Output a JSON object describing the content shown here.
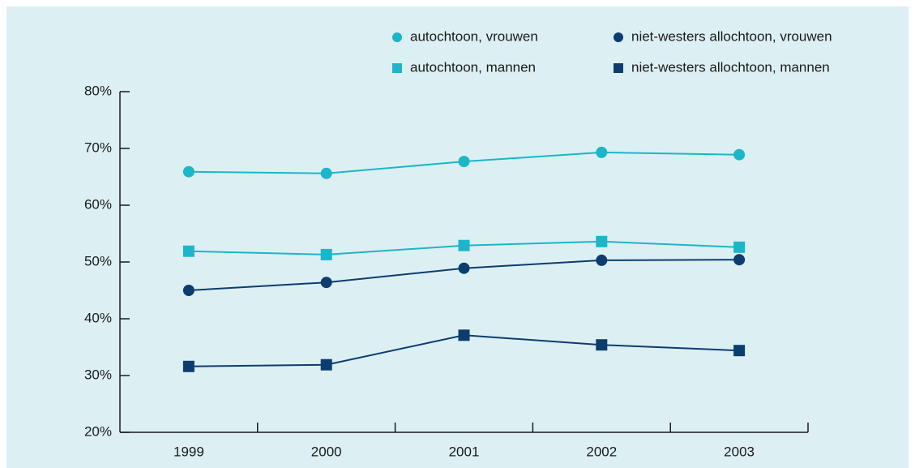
{
  "chart_data": {
    "type": "line",
    "categories": [
      "1999",
      "2000",
      "2001",
      "2002",
      "2003"
    ],
    "series": [
      {
        "name": "autochtoon, vrouwen",
        "color": "#1cb5c9",
        "marker": "circle",
        "values": [
          65.9,
          65.6,
          67.7,
          69.3,
          68.9
        ]
      },
      {
        "name": "niet-westers allochtoon, vrouwen",
        "color": "#0d3c6e",
        "marker": "circle",
        "values": [
          45.0,
          46.4,
          48.9,
          50.3,
          50.4
        ]
      },
      {
        "name": "autochtoon, mannen",
        "color": "#1cb5c9",
        "marker": "square",
        "values": [
          51.9,
          51.3,
          52.9,
          53.6,
          52.6
        ]
      },
      {
        "name": "niet-westers allochtoon, mannen",
        "color": "#0d3c6e",
        "marker": "square",
        "values": [
          31.6,
          31.9,
          37.1,
          35.4,
          34.4
        ]
      }
    ],
    "ylim": [
      20,
      80
    ],
    "yticks": [
      {
        "value": 20,
        "label": "20%"
      },
      {
        "value": 30,
        "label": "30%"
      },
      {
        "value": 40,
        "label": "40%"
      },
      {
        "value": 50,
        "label": "50%"
      },
      {
        "value": 60,
        "label": "60%"
      },
      {
        "value": 70,
        "label": "70%"
      },
      {
        "value": 80,
        "label": "80%"
      }
    ],
    "grid": false,
    "legend": "top-right"
  }
}
